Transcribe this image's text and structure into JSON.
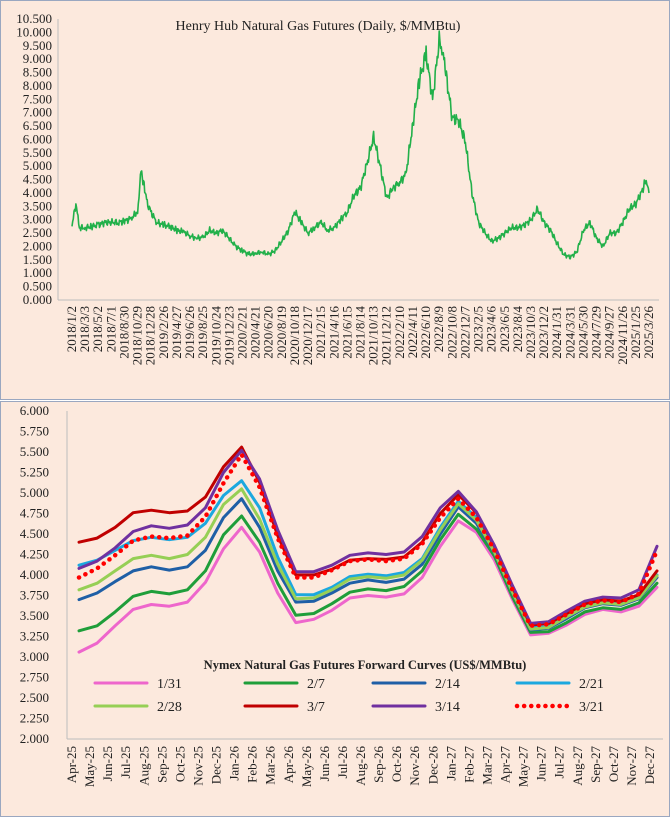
{
  "chart_data": [
    {
      "type": "line",
      "title": "Henry Hub Natural Gas Futures (Daily,  $/MMBtu)",
      "ylim": [
        0,
        10.5
      ],
      "y_ticks": [
        "0.000",
        "0.500",
        "1.000",
        "1.500",
        "2.000",
        "2.500",
        "3.000",
        "3.500",
        "4.000",
        "4.500",
        "5.000",
        "5.500",
        "6.000",
        "6.500",
        "7.000",
        "7.500",
        "8.000",
        "8.500",
        "9.000",
        "9.500",
        "10.000",
        "10.500"
      ],
      "x_tick_labels": [
        "2018/1/2",
        "2018/3/3",
        "2018/5/2",
        "2018/7/1",
        "2018/8/30",
        "2018/10/29",
        "2018/12/28",
        "2019/2/26",
        "2019/4/27",
        "2019/6/26",
        "2019/8/25",
        "2019/10/24",
        "2019/12/23",
        "2020/2/21",
        "2020/4/21",
        "2020/6/20",
        "2020/8/19",
        "2020/10/18",
        "2020/12/17",
        "2021/2/15",
        "2021/4/16",
        "2021/6/15",
        "2021/8/14",
        "2021/10/13",
        "2021/12/12",
        "2022/2/10",
        "2022/4/11",
        "2022/6/10",
        "2022/8/9",
        "2022/10/8",
        "2022/12/7",
        "2023/2/5",
        "2023/4/6",
        "2023/6/5",
        "2023/8/4",
        "2023/10/3",
        "2023/12/2",
        "2024/1/31",
        "2024/3/31",
        "2024/5/30",
        "2024/7/29",
        "2024/9/27",
        "2024/11/26",
        "2025/1/25",
        "2025/3/26"
      ],
      "series": [
        {
          "color": "#22b04a",
          "x": [
            "2018/1/2",
            "2018/1/20",
            "2018/2/5",
            "2018/3/3",
            "2018/4/1",
            "2018/5/2",
            "2018/6/1",
            "2018/7/1",
            "2018/8/1",
            "2018/8/30",
            "2018/9/30",
            "2018/10/29",
            "2018/11/14",
            "2018/11/28",
            "2018/12/15",
            "2018/12/28",
            "2019/1/25",
            "2019/2/26",
            "2019/3/26",
            "2019/4/27",
            "2019/5/26",
            "2019/6/26",
            "2019/7/25",
            "2019/8/25",
            "2019/9/24",
            "2019/10/24",
            "2019/11/20",
            "2019/12/23",
            "2020/1/20",
            "2020/2/21",
            "2020/3/20",
            "2020/4/21",
            "2020/5/20",
            "2020/6/20",
            "2020/7/20",
            "2020/8/19",
            "2020/9/18",
            "2020/10/18",
            "2020/11/16",
            "2020/12/17",
            "2021/1/15",
            "2021/2/15",
            "2021/3/16",
            "2021/4/16",
            "2021/5/15",
            "2021/6/15",
            "2021/7/15",
            "2021/8/14",
            "2021/9/13",
            "2021/10/13",
            "2021/11/12",
            "2021/12/12",
            "2022/1/10",
            "2022/2/10",
            "2022/3/10",
            "2022/4/11",
            "2022/5/10",
            "2022/6/10",
            "2022/7/10",
            "2022/8/9",
            "2022/8/25",
            "2022/9/8",
            "2022/10/8",
            "2022/11/7",
            "2022/12/7",
            "2023/1/6",
            "2023/2/5",
            "2023/3/7",
            "2023/4/6",
            "2023/5/6",
            "2023/6/5",
            "2023/7/5",
            "2023/8/4",
            "2023/9/3",
            "2023/10/3",
            "2023/11/2",
            "2023/12/2",
            "2024/1/1",
            "2024/1/31",
            "2024/3/1",
            "2024/3/31",
            "2024/4/30",
            "2024/5/30",
            "2024/6/29",
            "2024/7/29",
            "2024/8/28",
            "2024/9/27",
            "2024/10/27",
            "2024/11/26",
            "2024/12/26",
            "2025/1/25",
            "2025/2/24",
            "2025/3/10",
            "2025/3/26"
          ],
          "y": [
            2.8,
            3.6,
            2.7,
            2.7,
            2.75,
            2.8,
            2.9,
            2.9,
            2.9,
            2.95,
            3.05,
            3.3,
            4.8,
            4.3,
            3.5,
            3.3,
            2.9,
            2.8,
            2.75,
            2.6,
            2.55,
            2.4,
            2.3,
            2.35,
            2.6,
            2.5,
            2.6,
            2.3,
            2.0,
            1.85,
            1.7,
            1.75,
            1.8,
            1.7,
            1.85,
            2.2,
            2.6,
            3.3,
            2.9,
            2.5,
            2.7,
            2.9,
            2.6,
            2.7,
            3.0,
            3.3,
            3.9,
            4.2,
            5.1,
            6.1,
            5.0,
            3.8,
            4.2,
            4.4,
            4.7,
            6.6,
            8.2,
            9.2,
            7.5,
            9.7,
            9.3,
            8.5,
            6.8,
            6.7,
            5.9,
            4.0,
            2.9,
            2.5,
            2.2,
            2.3,
            2.5,
            2.7,
            2.7,
            2.8,
            3.0,
            3.4,
            2.9,
            2.6,
            2.1,
            1.7,
            1.6,
            1.8,
            2.6,
            2.9,
            2.3,
            2.0,
            2.5,
            2.5,
            2.9,
            3.4,
            3.6,
            4.1,
            4.5,
            4.0
          ]
        }
      ]
    },
    {
      "type": "line",
      "title": "Nymex  Natural Gas Futures Forward  Curves (US$/MMBtu)",
      "ylim": [
        2.0,
        6.0
      ],
      "y_ticks": [
        "2.000",
        "2.250",
        "2.500",
        "2.750",
        "3.000",
        "3.250",
        "3.500",
        "3.750",
        "4.000",
        "4.250",
        "4.500",
        "4.750",
        "5.000",
        "5.250",
        "5.500",
        "5.750",
        "6.000"
      ],
      "categories": [
        "Apr-25",
        "May-25",
        "Jun-25",
        "Jul-25",
        "Aug-25",
        "Sep-25",
        "Oct-25",
        "Nov-25",
        "Dec-25",
        "Jan-26",
        "Feb-26",
        "Mar-26",
        "Apr-26",
        "May-26",
        "Jun-26",
        "Jul-26",
        "Aug-26",
        "Sep-26",
        "Oct-26",
        "Nov-26",
        "Dec-26",
        "Jan-27",
        "Feb-27",
        "Mar-27",
        "Apr-27",
        "May-27",
        "Jun-27",
        "Jul-27",
        "Aug-27",
        "Sep-27",
        "Oct-27",
        "Nov-27",
        "Dec-27"
      ],
      "x_tick_labels": [
        "Apr-25",
        "May-25",
        "Jun-25",
        "Jul-25",
        "Aug-25",
        "Sep-25",
        "Oct-25",
        "Nov-25",
        "Dec-25",
        "Jan-26",
        "Feb-26",
        "Mar-26",
        "Apr-26",
        "May-26",
        "Jun-26",
        "Jul-26",
        "Aug-26",
        "Sep-26",
        "Oct-26",
        "Nov-26",
        "Dec-26",
        "Jan-27",
        "Feb-27",
        "Mar-27",
        "Apr-27",
        "May-27",
        "Jun-27",
        "Jul-27",
        "Aug-27",
        "Sep-27",
        "Oct-27",
        "Nov-27",
        "Dec-27"
      ],
      "legend_position": "bottom",
      "series": [
        {
          "name": "1/31",
          "color": "#ee66cc",
          "dotted": false,
          "values": [
            3.06,
            3.17,
            3.38,
            3.58,
            3.64,
            3.62,
            3.67,
            3.91,
            4.32,
            4.58,
            4.28,
            3.78,
            3.42,
            3.46,
            3.57,
            3.72,
            3.75,
            3.73,
            3.77,
            3.97,
            4.35,
            4.66,
            4.52,
            4.18,
            3.7,
            3.27,
            3.29,
            3.39,
            3.52,
            3.58,
            3.55,
            3.62,
            3.85
          ]
        },
        {
          "name": "2/7",
          "color": "#1f9e3a",
          "dotted": false,
          "values": [
            3.32,
            3.38,
            3.55,
            3.74,
            3.8,
            3.77,
            3.82,
            4.05,
            4.49,
            4.72,
            4.4,
            3.9,
            3.51,
            3.53,
            3.65,
            3.79,
            3.83,
            3.81,
            3.86,
            4.05,
            4.43,
            4.74,
            4.56,
            4.23,
            3.73,
            3.3,
            3.31,
            3.42,
            3.55,
            3.6,
            3.58,
            3.66,
            3.9
          ]
        },
        {
          "name": "2/14",
          "color": "#1f5fa6",
          "dotted": false,
          "values": [
            3.7,
            3.78,
            3.92,
            4.05,
            4.1,
            4.06,
            4.1,
            4.3,
            4.7,
            4.93,
            4.58,
            4.05,
            3.67,
            3.68,
            3.78,
            3.9,
            3.94,
            3.91,
            3.95,
            4.13,
            4.5,
            4.83,
            4.63,
            4.27,
            3.78,
            3.33,
            3.35,
            3.47,
            3.6,
            3.65,
            3.63,
            3.71,
            3.97
          ]
        },
        {
          "name": "2/21",
          "color": "#1ca8df",
          "dotted": false,
          "values": [
            4.12,
            4.18,
            4.3,
            4.42,
            4.46,
            4.43,
            4.46,
            4.63,
            4.97,
            5.15,
            4.82,
            4.22,
            3.76,
            3.76,
            3.85,
            3.98,
            4.01,
            3.99,
            4.03,
            4.2,
            4.58,
            4.9,
            4.7,
            4.3,
            3.8,
            3.36,
            3.37,
            3.5,
            3.62,
            3.67,
            3.65,
            3.73,
            4.0
          ]
        },
        {
          "name": "2/28",
          "color": "#96cf55",
          "dotted": false,
          "values": [
            3.82,
            3.9,
            4.05,
            4.2,
            4.24,
            4.2,
            4.25,
            4.46,
            4.86,
            5.05,
            4.68,
            4.13,
            3.71,
            3.72,
            3.82,
            3.95,
            3.98,
            3.96,
            4.0,
            4.18,
            4.55,
            4.87,
            4.67,
            4.28,
            3.79,
            3.34,
            3.36,
            3.49,
            3.61,
            3.66,
            3.64,
            3.72,
            3.99
          ]
        },
        {
          "name": "3/7",
          "color": "#c00000",
          "dotted": false,
          "values": [
            4.4,
            4.45,
            4.58,
            4.76,
            4.79,
            4.76,
            4.78,
            4.95,
            5.32,
            5.56,
            5.13,
            4.48,
            4.0,
            4.0,
            4.07,
            4.18,
            4.2,
            4.19,
            4.22,
            4.4,
            4.75,
            4.98,
            4.76,
            4.35,
            3.85,
            3.39,
            3.41,
            3.53,
            3.65,
            3.7,
            3.68,
            3.76,
            4.05
          ]
        },
        {
          "name": "3/14",
          "color": "#7030a0",
          "dotted": false,
          "values": [
            4.08,
            4.17,
            4.33,
            4.53,
            4.6,
            4.57,
            4.61,
            4.82,
            5.25,
            5.52,
            5.17,
            4.55,
            4.04,
            4.04,
            4.12,
            4.24,
            4.27,
            4.25,
            4.28,
            4.47,
            4.82,
            5.02,
            4.77,
            4.36,
            3.87,
            3.41,
            3.43,
            3.56,
            3.68,
            3.73,
            3.72,
            3.82,
            4.35
          ]
        },
        {
          "name": "3/21",
          "color": "#ff0000",
          "dotted": true,
          "values": [
            3.97,
            4.08,
            4.24,
            4.42,
            4.47,
            4.45,
            4.48,
            4.71,
            5.12,
            5.47,
            5.07,
            4.45,
            3.97,
            3.97,
            4.06,
            4.17,
            4.19,
            4.17,
            4.2,
            4.38,
            4.7,
            4.93,
            4.7,
            4.3,
            3.82,
            3.38,
            3.4,
            3.52,
            3.64,
            3.69,
            3.67,
            3.77,
            4.3
          ]
        }
      ]
    }
  ]
}
